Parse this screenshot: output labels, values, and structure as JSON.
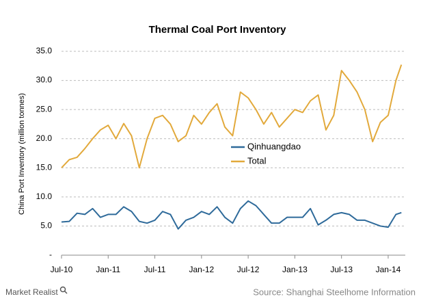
{
  "chart_data": {
    "type": "line",
    "title": "Thermal Coal Port Inventory",
    "y_label": "China Port Inventory (million tonnes)",
    "source": "Source: Shanghai Steelhome Information",
    "logo": "Market Realist",
    "x": [
      0,
      1,
      2,
      3,
      4,
      5,
      6,
      7,
      8,
      9,
      10,
      11,
      12,
      13,
      14,
      15,
      16,
      17,
      18,
      19,
      20,
      21,
      22,
      23,
      24,
      25,
      26,
      27,
      28,
      29,
      30,
      31,
      32,
      33,
      34,
      35,
      36,
      37,
      38,
      39,
      40,
      41,
      42,
      43,
      43.7
    ],
    "xlim": [
      0,
      44.2
    ],
    "xticks": [
      {
        "value": 0,
        "label": "Jul-10"
      },
      {
        "value": 6,
        "label": "Jan-11"
      },
      {
        "value": 12,
        "label": "Jul-11"
      },
      {
        "value": 18,
        "label": "Jan-12"
      },
      {
        "value": 24,
        "label": "Jul-12"
      },
      {
        "value": 30,
        "label": "Jan-13"
      },
      {
        "value": 36,
        "label": "Jul-13"
      },
      {
        "value": 42,
        "label": "Jan-14"
      }
    ],
    "ylim": [
      0,
      35
    ],
    "yticks": [
      {
        "value": 0,
        "label": "-"
      },
      {
        "value": 5,
        "label": "5.0"
      },
      {
        "value": 10,
        "label": "10.0"
      },
      {
        "value": 15,
        "label": "15.0"
      },
      {
        "value": 20,
        "label": "20.0"
      },
      {
        "value": 25,
        "label": "25.0"
      },
      {
        "value": 30,
        "label": "30.0"
      },
      {
        "value": 35,
        "label": "35.0"
      }
    ],
    "grid": true,
    "legend": "center",
    "series": [
      {
        "name": "Qinhuangdao",
        "color": "#2e6a9a",
        "values": [
          5.7,
          5.8,
          7.2,
          7.0,
          8.0,
          6.5,
          7.0,
          7.0,
          8.3,
          7.5,
          5.8,
          5.5,
          6.0,
          7.5,
          7.0,
          4.5,
          6.0,
          6.5,
          7.5,
          7.0,
          8.3,
          6.5,
          5.5,
          8.0,
          9.3,
          8.5,
          7.0,
          5.5,
          5.5,
          6.5,
          6.5,
          6.5,
          8.0,
          5.2,
          6.0,
          7.0,
          7.3,
          7.0,
          6.0,
          6.0,
          5.5,
          5.0,
          4.8,
          7.0,
          7.3
        ]
      },
      {
        "name": "Total",
        "color": "#e2a93b",
        "values": [
          15.0,
          16.4,
          16.8,
          18.3,
          20.0,
          21.5,
          22.3,
          20.0,
          22.6,
          20.5,
          15.0,
          20.0,
          23.5,
          24.0,
          22.5,
          19.5,
          20.5,
          24.0,
          22.5,
          24.5,
          26.0,
          22.0,
          20.5,
          28.0,
          27.0,
          25.0,
          22.5,
          24.5,
          22.0,
          23.5,
          25.0,
          24.5,
          26.5,
          27.5,
          21.5,
          24.0,
          31.7,
          30.0,
          28.0,
          25.0,
          19.5,
          22.8,
          24.0,
          30.0,
          32.7
        ]
      }
    ]
  }
}
